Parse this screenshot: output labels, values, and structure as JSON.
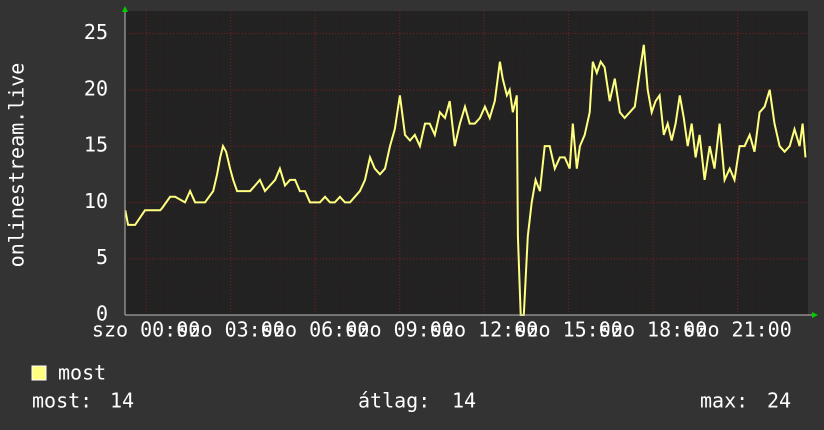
{
  "chart_data": {
    "type": "line",
    "y_label": "onlinestream.live",
    "xlim": [
      -0.75,
      23.5
    ],
    "ylim": [
      0,
      27
    ],
    "yticks": [
      0,
      5,
      10,
      15,
      20,
      25
    ],
    "xticks": [
      {
        "value": 0,
        "label": "szo 00:00"
      },
      {
        "value": 3,
        "label": "szo 03:00"
      },
      {
        "value": 6,
        "label": "szo 06:00"
      },
      {
        "value": 9,
        "label": "szo 09:00"
      },
      {
        "value": 12,
        "label": "szo 12:00"
      },
      {
        "value": 15,
        "label": "szo 15:00"
      },
      {
        "value": 18,
        "label": "szo 18:00"
      },
      {
        "value": 21,
        "label": "szo 21:00"
      }
    ],
    "grid": true,
    "x": [
      -0.74,
      -0.64,
      -0.39,
      -0.04,
      0.14,
      0.5,
      0.57,
      0.85,
      1.03,
      1.38,
      1.56,
      1.74,
      2.09,
      2.38,
      2.52,
      2.63,
      2.73,
      2.84,
      2.98,
      3.09,
      3.23,
      3.69,
      3.87,
      4.04,
      4.22,
      4.4,
      4.58,
      4.75,
      4.93,
      5.11,
      5.29,
      5.46,
      5.64,
      5.82,
      6.17,
      6.35,
      6.53,
      6.7,
      6.88,
      7.06,
      7.24,
      7.41,
      7.59,
      7.77,
      7.95,
      8.12,
      8.3,
      8.48,
      8.66,
      8.83,
      9.01,
      9.19,
      9.37,
      9.54,
      9.72,
      9.9,
      10.07,
      10.25,
      10.43,
      10.61,
      10.78,
      10.96,
      11.14,
      11.32,
      11.49,
      11.67,
      11.85,
      12.03,
      12.2,
      12.38,
      12.56,
      12.66,
      12.81,
      12.91,
      13.02,
      13.16,
      13.2,
      13.3,
      13.41,
      13.55,
      13.69,
      13.83,
      13.98,
      14.15,
      14.33,
      14.51,
      14.69,
      14.86,
      15.04,
      15.15,
      15.29,
      15.4,
      15.57,
      15.75,
      15.86,
      16.0,
      16.14,
      16.28,
      16.46,
      16.64,
      16.82,
      16.99,
      17.17,
      17.35,
      17.52,
      17.67,
      17.81,
      17.95,
      18.09,
      18.23,
      18.38,
      18.52,
      18.66,
      18.8,
      18.95,
      19.09,
      19.23,
      19.37,
      19.51,
      19.65,
      19.83,
      20.01,
      20.18,
      20.36,
      20.54,
      20.72,
      20.89,
      21.07,
      21.25,
      21.43,
      21.6,
      21.78,
      21.96,
      22.14,
      22.31,
      22.49,
      22.67,
      22.85,
      23.02,
      23.2,
      23.31,
      23.41
    ],
    "series": [
      {
        "name": "most",
        "color": "#ffff80",
        "values": [
          9.3,
          8,
          8,
          9.3,
          9.3,
          9.3,
          9.5,
          10.5,
          10.5,
          10,
          11,
          10,
          10,
          11,
          12.5,
          14,
          15,
          14.5,
          13,
          12,
          11,
          11,
          11.5,
          12,
          11,
          11.5,
          12,
          13,
          11.5,
          12,
          12,
          11,
          11,
          10,
          10,
          10.5,
          10,
          10,
          10.5,
          10,
          10,
          10.5,
          11,
          12,
          14,
          13,
          12.5,
          13,
          15,
          16.5,
          19.5,
          16,
          15.5,
          16,
          15,
          17,
          17,
          16,
          18,
          17.5,
          19,
          15,
          17,
          18.5,
          17,
          17,
          17.5,
          18.5,
          17.5,
          19,
          22.5,
          21,
          19.5,
          20,
          18,
          19.5,
          7,
          0,
          0,
          7,
          10,
          12,
          11,
          15,
          15,
          13,
          14,
          14,
          13,
          17,
          13,
          15,
          16,
          18,
          22.5,
          21.5,
          22.5,
          22,
          19,
          21,
          18,
          17.5,
          18,
          18.5,
          21.5,
          24,
          20,
          18,
          19,
          19.5,
          16,
          17,
          15.5,
          17,
          19.5,
          17.5,
          15,
          17,
          14,
          16,
          12,
          15,
          13,
          17,
          12,
          13,
          12,
          15,
          15,
          16,
          14.5,
          18,
          18.5,
          20,
          17,
          15,
          14.5,
          15,
          16.5,
          15,
          17,
          14
        ]
      }
    ],
    "stats": [
      {
        "label": "most:",
        "value": 14
      },
      {
        "label": "átlag:",
        "value": 14
      },
      {
        "label": "max:",
        "value": 24
      }
    ]
  }
}
